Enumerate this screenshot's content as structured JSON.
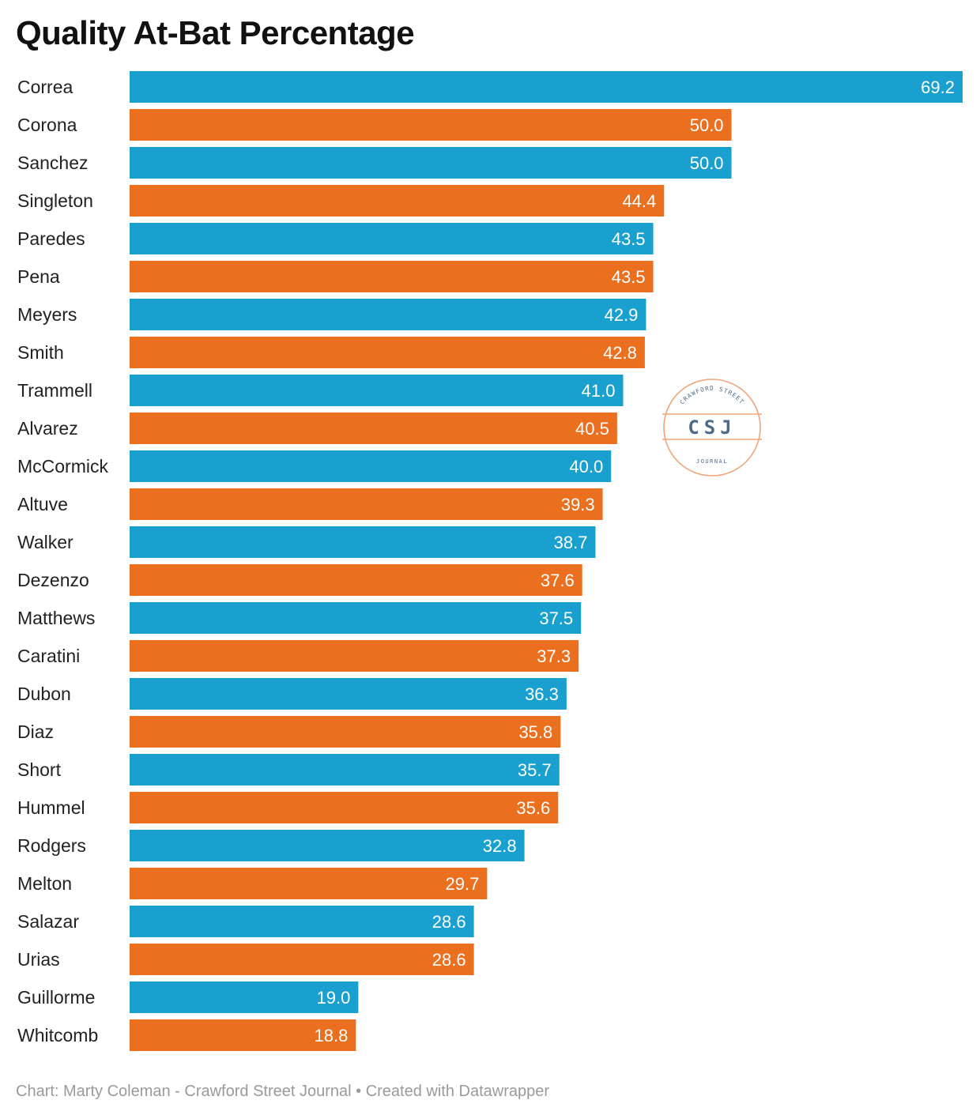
{
  "title": "Quality At-Bat Percentage",
  "footer": "Chart: Marty Coleman - Crawford Street Journal • Created with Datawrapper",
  "logo": {
    "top_text": "CRAWFORD STREET",
    "initials": "CSJ",
    "bottom_text": "JOURNAL",
    "color": "#f0a67a",
    "initials_color": "#4d6a8a"
  },
  "colors": {
    "blue": "#1aa0cf",
    "orange": "#ea6f1e"
  },
  "chart_data": {
    "type": "bar",
    "orientation": "horizontal",
    "title": "Quality At-Bat Percentage",
    "xlim": [
      0,
      69.2
    ],
    "categories": [
      "Correa",
      "Corona",
      "Sanchez",
      "Singleton",
      "Paredes",
      "Pena",
      "Meyers",
      "Smith",
      "Trammell",
      "Alvarez",
      "McCormick",
      "Altuve",
      "Walker",
      "Dezenzo",
      "Matthews",
      "Caratini",
      "Dubon",
      "Diaz",
      "Short",
      "Hummel",
      "Rodgers",
      "Melton",
      "Salazar",
      "Urias",
      "Guillorme",
      "Whitcomb"
    ],
    "values": [
      69.2,
      50.0,
      50.0,
      44.4,
      43.5,
      43.5,
      42.9,
      42.8,
      41.0,
      40.5,
      40.0,
      39.3,
      38.7,
      37.6,
      37.5,
      37.3,
      36.3,
      35.8,
      35.7,
      35.6,
      32.8,
      29.7,
      28.6,
      28.6,
      19.0,
      18.8
    ],
    "value_labels": [
      "69.2",
      "50.0",
      "50.0",
      "44.4",
      "43.5",
      "43.5",
      "42.9",
      "42.8",
      "41.0",
      "40.5",
      "40.0",
      "39.3",
      "38.7",
      "37.6",
      "37.5",
      "37.3",
      "36.3",
      "35.8",
      "35.7",
      "35.6",
      "32.8",
      "29.7",
      "28.6",
      "28.6",
      "19.0",
      "18.8"
    ],
    "bar_colors": [
      "blue",
      "orange",
      "blue",
      "orange",
      "blue",
      "orange",
      "blue",
      "orange",
      "blue",
      "orange",
      "blue",
      "orange",
      "blue",
      "orange",
      "blue",
      "orange",
      "blue",
      "orange",
      "blue",
      "orange",
      "blue",
      "orange",
      "blue",
      "orange",
      "blue",
      "orange"
    ]
  }
}
